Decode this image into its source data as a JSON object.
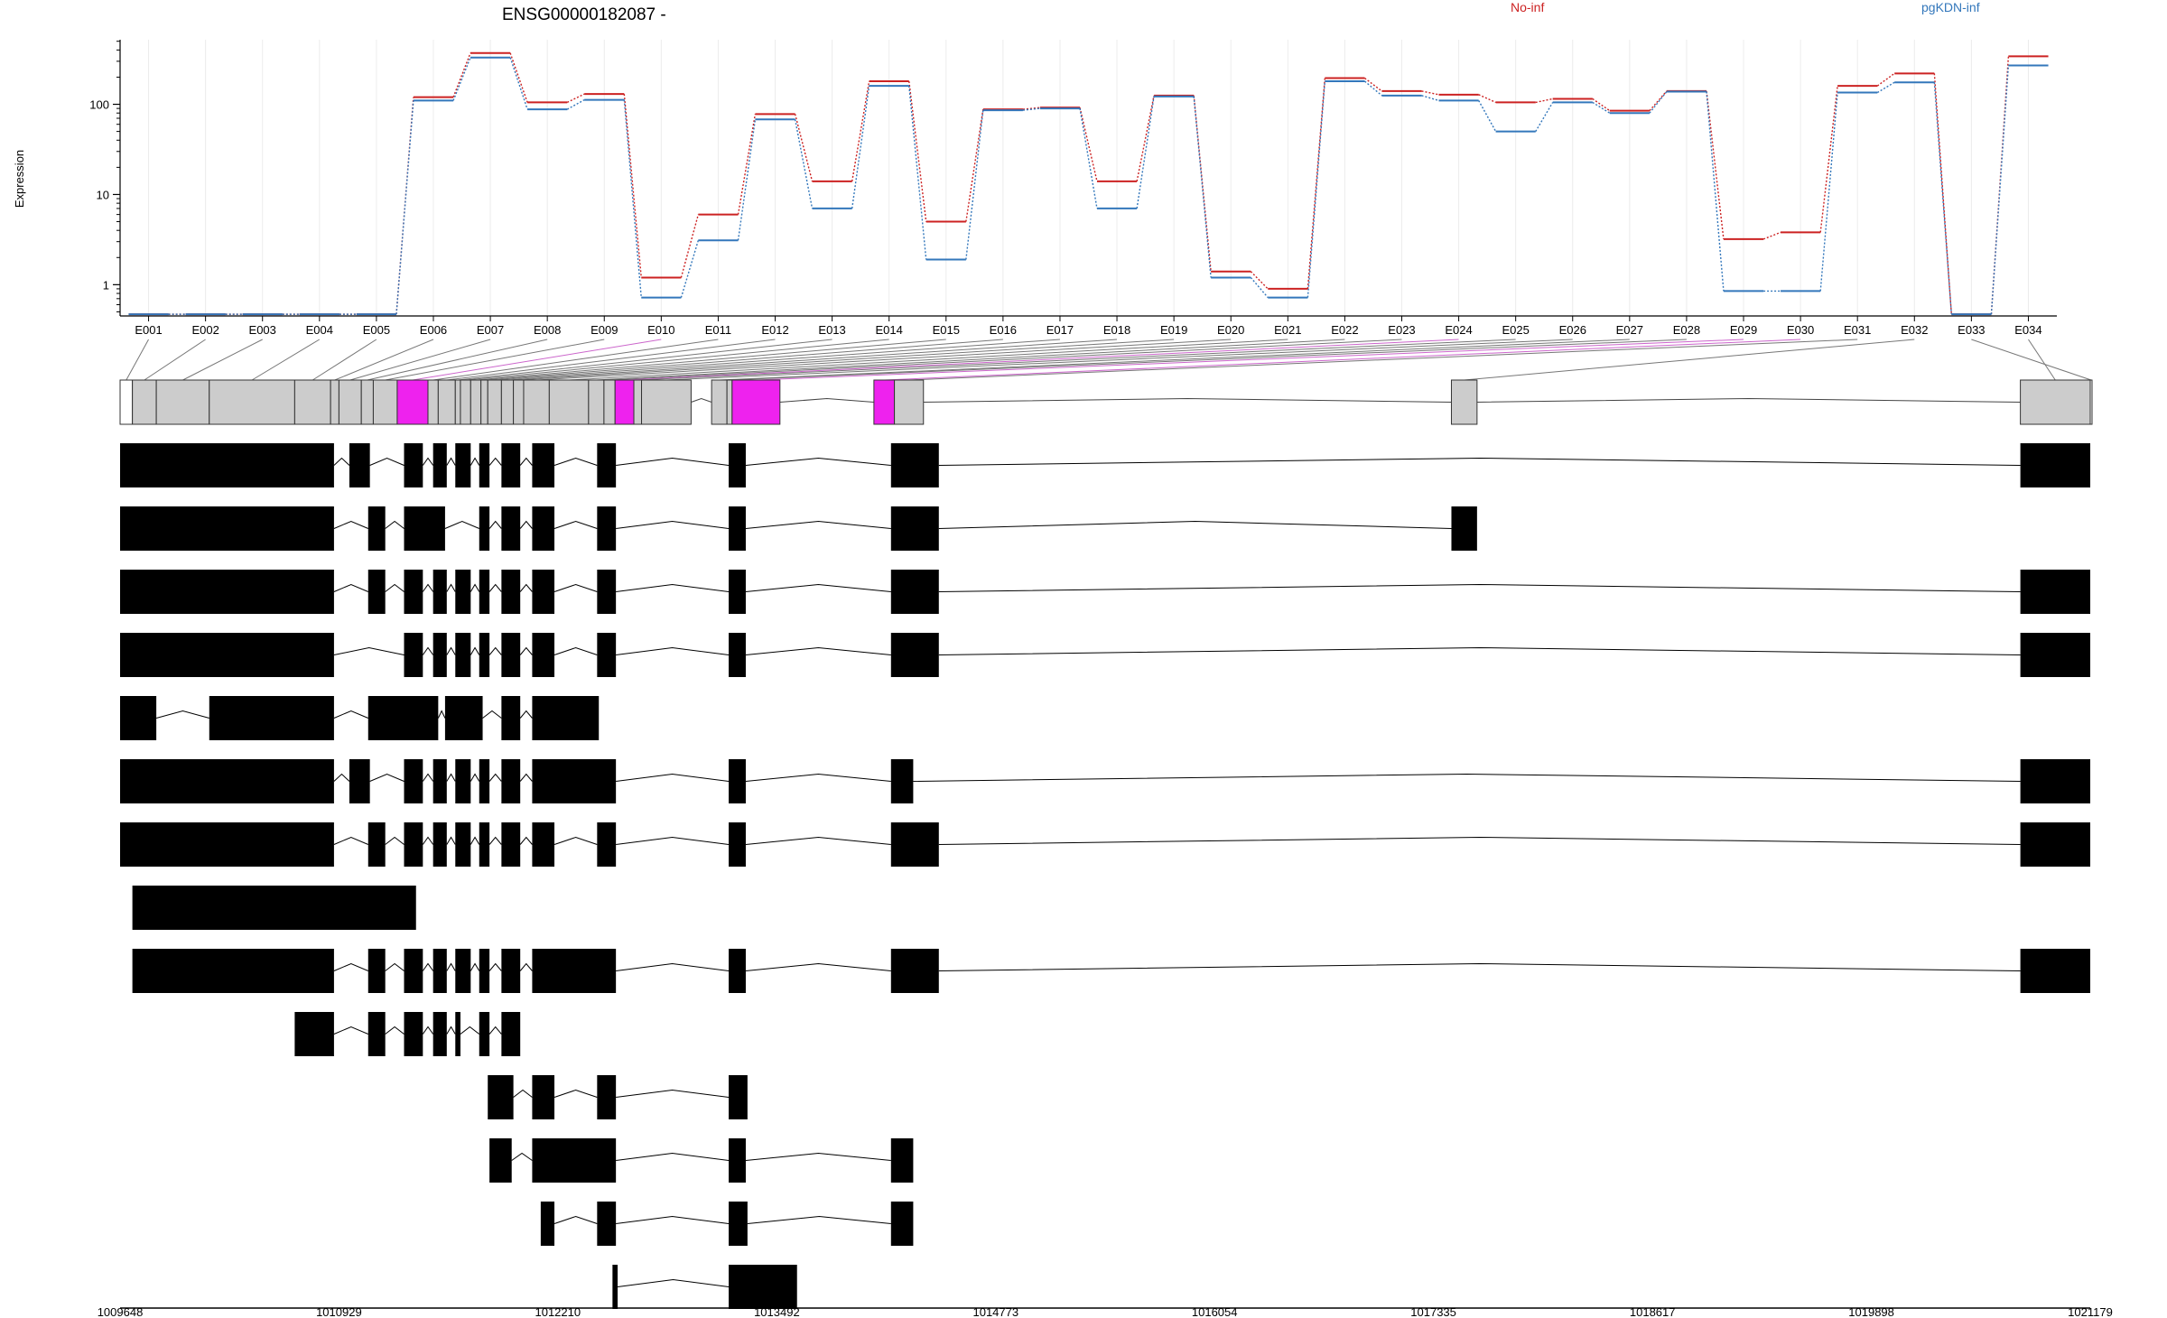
{
  "chart_data": {
    "type": "line",
    "title": "ENSG00000182087 -",
    "ylabel": "Expression",
    "yscale": "log",
    "ylim": [
      0.45,
      520
    ],
    "yticks": [
      1,
      10,
      100
    ],
    "ytick_labels": [
      "1",
      "10",
      "100"
    ],
    "grid": "vertical lines at exon bins",
    "legend_placement": "top, above plot",
    "categories": [
      "E001",
      "E002",
      "E003",
      "E004",
      "E005",
      "E006",
      "E007",
      "E008",
      "E009",
      "E010",
      "E011",
      "E012",
      "E013",
      "E014",
      "E015",
      "E016",
      "E017",
      "E018",
      "E019",
      "E020",
      "E021",
      "E022",
      "E023",
      "E024",
      "E025",
      "E026",
      "E027",
      "E028",
      "E029",
      "E030",
      "E031",
      "E032",
      "E033",
      "E034"
    ],
    "series": [
      {
        "name": "No-inf",
        "color": "#cc2222",
        "values": [
          0.47,
          0.47,
          0.47,
          0.47,
          0.47,
          120,
          370,
          105,
          130,
          1.2,
          6.0,
          78,
          14,
          180,
          5.0,
          88,
          92,
          14,
          125,
          1.4,
          0.9,
          195,
          140,
          128,
          105,
          115,
          85,
          140,
          3.2,
          3.8,
          160,
          220,
          0.47,
          340
        ]
      },
      {
        "name": "pgKDN-inf",
        "color": "#3377bb",
        "values": [
          0.47,
          0.47,
          0.47,
          0.47,
          0.47,
          110,
          330,
          88,
          112,
          0.72,
          3.1,
          68,
          7.0,
          160,
          1.9,
          86,
          90,
          7.0,
          122,
          1.2,
          0.72,
          180,
          125,
          110,
          50,
          105,
          80,
          138,
          0.85,
          0.85,
          135,
          175,
          0.47,
          270
        ]
      }
    ],
    "exon_track": {
      "genomic_axis_ticks": [
        "1009648",
        "1010929",
        "1012210",
        "1013492",
        "1014773",
        "1016054",
        "1017335",
        "1018617",
        "1019898",
        "1021179"
      ],
      "genomic_axis_range": [
        1009648,
        1021179
      ],
      "exon_bins": [
        [
          1009648,
          1009720
        ],
        [
          1009720,
          1009860
        ],
        [
          1009860,
          1010170
        ],
        [
          1010170,
          1010670
        ],
        [
          1010670,
          1010880
        ],
        [
          1010880,
          1010929
        ],
        [
          1010929,
          1011060
        ],
        [
          1011060,
          1011130
        ],
        [
          1011130,
          1011270
        ],
        [
          1011270,
          1011450
        ],
        [
          1011450,
          1011510
        ],
        [
          1011510,
          1011610
        ],
        [
          1011610,
          1011640
        ],
        [
          1011640,
          1011700
        ],
        [
          1011700,
          1011760
        ],
        [
          1011760,
          1011800
        ],
        [
          1011800,
          1011880
        ],
        [
          1011880,
          1011950
        ],
        [
          1011950,
          1012010
        ],
        [
          1012010,
          1012160
        ],
        [
          1012160,
          1012390
        ],
        [
          1012390,
          1012480
        ],
        [
          1012480,
          1012545
        ],
        [
          1012545,
          1012655
        ],
        [
          1012655,
          1012700
        ],
        [
          1012700,
          1012990
        ],
        [
          1013110,
          1013200
        ],
        [
          1013200,
          1013230
        ],
        [
          1013230,
          1013510
        ],
        [
          1014060,
          1014180
        ],
        [
          1014180,
          1014350
        ],
        [
          1017440,
          1017590
        ],
        [
          1021179,
          1021180
        ],
        [
          1020770,
          1021179
        ]
      ],
      "highlighted_bins": [
        "E010",
        "E024",
        "E029",
        "E030"
      ],
      "highlight_color": "#ee22ee",
      "open_bins": [
        "E001",
        "E033"
      ],
      "exon_color": "#cccccc",
      "transcripts": [
        [
          [
            1009648,
            1010900
          ],
          [
            1010990,
            1011110
          ],
          [
            1011310,
            1011420
          ],
          [
            1011480,
            1011560
          ],
          [
            1011610,
            1011700
          ],
          [
            1011750,
            1011810
          ],
          [
            1011880,
            1011990
          ],
          [
            1012060,
            1012190
          ],
          [
            1012440,
            1012550
          ],
          [
            1013210,
            1013310
          ],
          [
            1014160,
            1014440
          ],
          [
            1020770,
            1021179
          ]
        ],
        [
          [
            1009648,
            1010900
          ],
          [
            1011100,
            1011200
          ],
          [
            1011310,
            1011550
          ],
          [
            1011750,
            1011810
          ],
          [
            1011880,
            1011990
          ],
          [
            1012060,
            1012190
          ],
          [
            1012440,
            1012550
          ],
          [
            1013210,
            1013310
          ],
          [
            1014160,
            1014440
          ],
          [
            1017440,
            1017590
          ]
        ],
        [
          [
            1009648,
            1010900
          ],
          [
            1011100,
            1011200
          ],
          [
            1011310,
            1011420
          ],
          [
            1011480,
            1011560
          ],
          [
            1011610,
            1011700
          ],
          [
            1011750,
            1011810
          ],
          [
            1011880,
            1011990
          ],
          [
            1012060,
            1012190
          ],
          [
            1012440,
            1012550
          ],
          [
            1013210,
            1013310
          ],
          [
            1014160,
            1014440
          ],
          [
            1020770,
            1021179
          ]
        ],
        [
          [
            1009648,
            1010900
          ],
          [
            1011310,
            1011420
          ],
          [
            1011480,
            1011560
          ],
          [
            1011610,
            1011700
          ],
          [
            1011750,
            1011810
          ],
          [
            1011880,
            1011990
          ],
          [
            1012060,
            1012190
          ],
          [
            1012440,
            1012550
          ],
          [
            1013210,
            1013310
          ],
          [
            1014160,
            1014440
          ],
          [
            1020770,
            1021179
          ]
        ],
        [
          [
            1009648,
            1009860
          ],
          [
            1010170,
            1010900
          ],
          [
            1011100,
            1011510
          ],
          [
            1011550,
            1011770
          ],
          [
            1011880,
            1011990
          ],
          [
            1012060,
            1012450
          ]
        ],
        [
          [
            1009648,
            1010900
          ],
          [
            1010990,
            1011110
          ],
          [
            1011310,
            1011420
          ],
          [
            1011480,
            1011560
          ],
          [
            1011610,
            1011700
          ],
          [
            1011750,
            1011810
          ],
          [
            1011880,
            1011990
          ],
          [
            1012060,
            1012550
          ],
          [
            1013210,
            1013310
          ],
          [
            1014160,
            1014290
          ],
          [
            1020770,
            1021179
          ]
        ],
        [
          [
            1009648,
            1010900
          ],
          [
            1011100,
            1011200
          ],
          [
            1011310,
            1011420
          ],
          [
            1011480,
            1011560
          ],
          [
            1011610,
            1011700
          ],
          [
            1011750,
            1011810
          ],
          [
            1011880,
            1011990
          ],
          [
            1012060,
            1012190
          ],
          [
            1012440,
            1012550
          ],
          [
            1013210,
            1013310
          ],
          [
            1014160,
            1014440
          ],
          [
            1020770,
            1021179
          ]
        ],
        [
          [
            1009720,
            1011380
          ]
        ],
        [
          [
            1009720,
            1010900
          ],
          [
            1011100,
            1011200
          ],
          [
            1011310,
            1011420
          ],
          [
            1011480,
            1011560
          ],
          [
            1011610,
            1011700
          ],
          [
            1011750,
            1011810
          ],
          [
            1011880,
            1011990
          ],
          [
            1012060,
            1012550
          ],
          [
            1013210,
            1013310
          ],
          [
            1014160,
            1014440
          ],
          [
            1020770,
            1021179
          ]
        ],
        [
          [
            1010670,
            1010900
          ],
          [
            1011100,
            1011200
          ],
          [
            1011310,
            1011420
          ],
          [
            1011480,
            1011560
          ],
          [
            1011610,
            1011640
          ],
          [
            1011750,
            1011810
          ],
          [
            1011880,
            1011990
          ]
        ],
        [
          [
            1011800,
            1011950
          ],
          [
            1012060,
            1012190
          ],
          [
            1012440,
            1012550
          ],
          [
            1013210,
            1013320
          ]
        ],
        [
          [
            1011810,
            1011940
          ],
          [
            1012060,
            1012550
          ],
          [
            1013210,
            1013310
          ],
          [
            1014160,
            1014290
          ]
        ],
        [
          [
            1012110,
            1012190
          ],
          [
            1012440,
            1012550
          ],
          [
            1013210,
            1013320
          ],
          [
            1014160,
            1014290
          ]
        ],
        [
          [
            1012530,
            1012560
          ],
          [
            1013210,
            1013610
          ]
        ]
      ]
    }
  },
  "legend": [
    {
      "label": "No-inf",
      "color": "#cc2222"
    },
    {
      "label": "pgKDN-inf",
      "color": "#3377bb"
    }
  ]
}
